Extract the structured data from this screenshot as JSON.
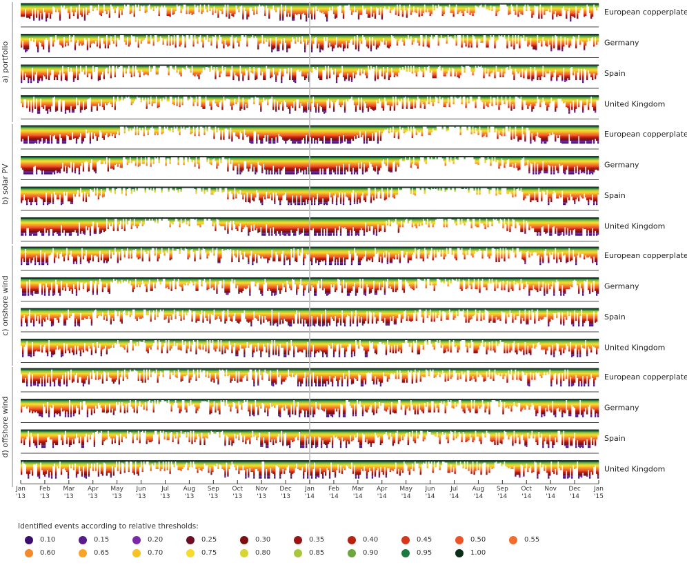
{
  "chart_data": {
    "type": "area",
    "description_type": "event threshold raster timeline",
    "groups": [
      {
        "label": "a) portfolio",
        "rows": [
          "European copperplate",
          "Germany",
          "Spain",
          "United Kingdom"
        ]
      },
      {
        "label": "b) solar PV",
        "rows": [
          "European copperplate",
          "Germany",
          "Spain",
          "United Kingdom"
        ]
      },
      {
        "label": "c) onshore wind",
        "rows": [
          "European copperplate",
          "Germany",
          "Spain",
          "United Kingdom"
        ]
      },
      {
        "label": "d) offshore wind",
        "rows": [
          "European copperplate",
          "Germany",
          "Spain",
          "United Kingdom"
        ]
      }
    ],
    "x_ticks": [
      {
        "month": "Jan",
        "year": "'13"
      },
      {
        "month": "Feb",
        "year": "'13"
      },
      {
        "month": "Mar",
        "year": "'13"
      },
      {
        "month": "Apr",
        "year": "'13"
      },
      {
        "month": "May",
        "year": "'13"
      },
      {
        "month": "Jun",
        "year": "'13"
      },
      {
        "month": "Jul",
        "year": "'13"
      },
      {
        "month": "Aug",
        "year": "'13"
      },
      {
        "month": "Sep",
        "year": "'13"
      },
      {
        "month": "Oct",
        "year": "'13"
      },
      {
        "month": "Nov",
        "year": "'13"
      },
      {
        "month": "Dec",
        "year": "'13"
      },
      {
        "month": "Jan",
        "year": "'14"
      },
      {
        "month": "Feb",
        "year": "'14"
      },
      {
        "month": "Mar",
        "year": "'14"
      },
      {
        "month": "Apr",
        "year": "'14"
      },
      {
        "month": "May",
        "year": "'14"
      },
      {
        "month": "Jun",
        "year": "'14"
      },
      {
        "month": "Jul",
        "year": "'14"
      },
      {
        "month": "Aug",
        "year": "'14"
      },
      {
        "month": "Sep",
        "year": "'14"
      },
      {
        "month": "Oct",
        "year": "'14"
      },
      {
        "month": "Nov",
        "year": "'14"
      },
      {
        "month": "Dec",
        "year": "'14"
      },
      {
        "month": "Jan",
        "year": "'15"
      }
    ],
    "x_range": [
      "2013-01-01",
      "2015-01-01"
    ],
    "legend_title": "Identified events according to relative thresholds:",
    "thresholds": [
      {
        "label": "0.10",
        "value": 0.1,
        "color": "#3b0f6f"
      },
      {
        "label": "0.15",
        "value": 0.15,
        "color": "#5a1a8c"
      },
      {
        "label": "0.20",
        "value": 0.2,
        "color": "#7a2aa8"
      },
      {
        "label": "0.25",
        "value": 0.25,
        "color": "#6b1024"
      },
      {
        "label": "0.30",
        "value": 0.3,
        "color": "#7e0f0f"
      },
      {
        "label": "0.35",
        "value": 0.35,
        "color": "#9a1414"
      },
      {
        "label": "0.40",
        "value": 0.4,
        "color": "#b8200f"
      },
      {
        "label": "0.45",
        "value": 0.45,
        "color": "#d8361a"
      },
      {
        "label": "0.50",
        "value": 0.5,
        "color": "#ec5427"
      },
      {
        "label": "0.55",
        "value": 0.55,
        "color": "#f26d2b"
      },
      {
        "label": "0.60",
        "value": 0.6,
        "color": "#f5892c"
      },
      {
        "label": "0.65",
        "value": 0.65,
        "color": "#f7a428"
      },
      {
        "label": "0.70",
        "value": 0.7,
        "color": "#f7c224"
      },
      {
        "label": "0.75",
        "value": 0.75,
        "color": "#f5dc2f"
      },
      {
        "label": "0.80",
        "value": 0.8,
        "color": "#d8d530"
      },
      {
        "label": "0.85",
        "value": 0.85,
        "color": "#a8c83a"
      },
      {
        "label": "0.90",
        "value": 0.9,
        "color": "#6aa83e"
      },
      {
        "label": "0.95",
        "value": 0.95,
        "color": "#1d7a3f"
      },
      {
        "label": "1.00",
        "value": 1.0,
        "color": "#0c2d1a"
      }
    ]
  }
}
